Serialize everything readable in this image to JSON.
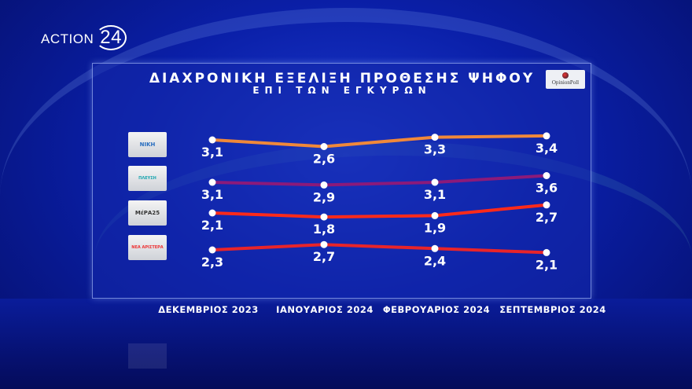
{
  "brand": {
    "name": "ACTION",
    "number": "24"
  },
  "source_logo": "OpinionPoll",
  "chart_data": {
    "type": "line",
    "title": "ΔΙΑΧΡΟΝΙΚΗ ΕΞΕΛΙΞΗ ΠΡΟΘΕΣΗΣ ΨΗΦΟΥ",
    "subtitle": "ΕΠΙ ΤΩΝ ΕΓΚΥΡΩΝ",
    "categories": [
      "ΔΕΚΕΜΒΡΙΟΣ 2023",
      "ΙΑΝΟΥΑΡΙΟΣ 2024",
      "ΦΕΒΡΟΥΑΡΙΟΣ 2024",
      "ΣΕΠΤΕΜΒΡΙΟΣ 2024"
    ],
    "series": [
      {
        "name": "ΝΙΚΗ",
        "color": "#f0883a",
        "values": [
          3.1,
          2.6,
          3.3,
          3.4
        ],
        "labels": [
          "3,1",
          "2,6",
          "3,3",
          "3,4"
        ]
      },
      {
        "name": "ΠΛΕΥΣΗ ΕΛΕΥΘΕΡΙΑΣ",
        "color": "#8b1a7a",
        "values": [
          3.1,
          2.9,
          3.1,
          3.6
        ],
        "labels": [
          "3,1",
          "2,9",
          "3,1",
          "3,6"
        ]
      },
      {
        "name": "ΜέΡΑ25",
        "color": "#ff2a1a",
        "values": [
          2.1,
          1.8,
          1.9,
          2.7
        ],
        "labels": [
          "2,1",
          "1,8",
          "1,9",
          "2,7"
        ]
      },
      {
        "name": "ΝΕΑ ΑΡΙΣΤΕΡΑ",
        "color": "#e8242a",
        "values": [
          2.3,
          2.7,
          2.4,
          2.1
        ],
        "labels": [
          "2,3",
          "2,7",
          "2,4",
          "2,1"
        ]
      }
    ],
    "legend": "party logos left",
    "grid": false
  }
}
